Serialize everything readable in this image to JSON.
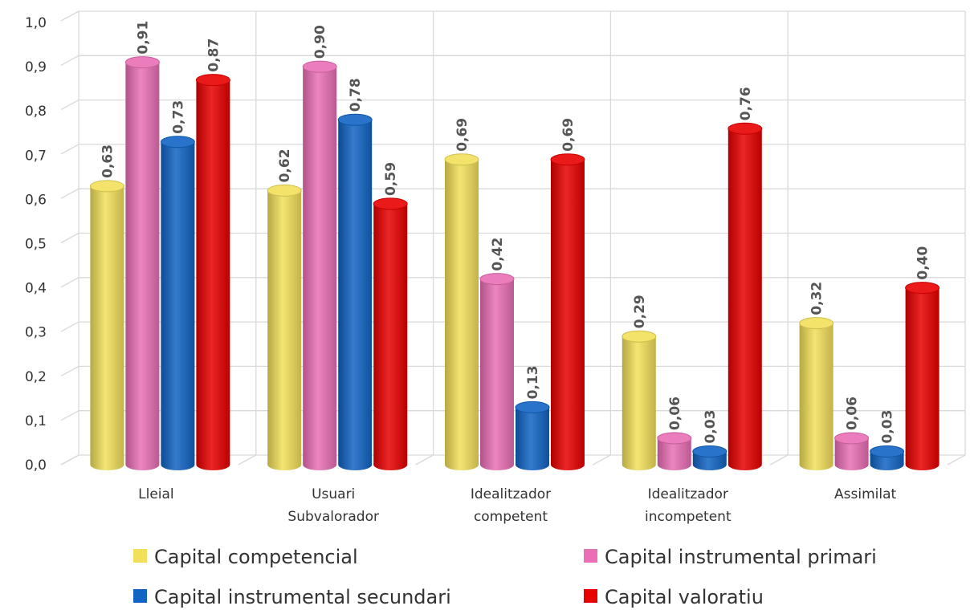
{
  "chart_data": {
    "type": "bar",
    "categories": [
      [
        "Lleial"
      ],
      [
        "Usuari",
        "Subvalorador"
      ],
      [
        "Idealitzador",
        "competent"
      ],
      [
        "Idealitzador",
        "incompetent"
      ],
      [
        "Assimilat"
      ]
    ],
    "series": [
      {
        "name": "Capital competencial",
        "color": "#f2e05a",
        "values": [
          0.63,
          0.62,
          0.69,
          0.29,
          0.32
        ],
        "labels": [
          "0,63",
          "0,62",
          "0,69",
          "0,29",
          "0,32"
        ]
      },
      {
        "name": "Capital instrumental primari",
        "color": "#ea6fb6",
        "values": [
          0.91,
          0.9,
          0.42,
          0.06,
          0.06
        ],
        "labels": [
          "0,91",
          "0,90",
          "0,42",
          "0,06",
          "0,06"
        ]
      },
      {
        "name": "Capital instrumental secundari",
        "color": "#1164c4",
        "values": [
          0.73,
          0.78,
          0.13,
          0.03,
          0.03
        ],
        "labels": [
          "0,73",
          "0,78",
          "0,13",
          "0,03",
          "0,03"
        ]
      },
      {
        "name": "Capital valoratiu",
        "color": "#e80000",
        "values": [
          0.87,
          0.59,
          0.69,
          0.76,
          0.4
        ],
        "labels": [
          "0,87",
          "0,59",
          "0,69",
          "0,76",
          "0,40"
        ]
      }
    ],
    "yticks": [
      "0,0",
      "0,1",
      "0,2",
      "0,3",
      "0,4",
      "0,5",
      "0,6",
      "0,7",
      "0,8",
      "0,9",
      "1,0"
    ],
    "ylim": [
      0,
      1.0
    ],
    "xlabel": "",
    "ylabel": "",
    "title": "",
    "grid": true,
    "legend_position": "bottom",
    "style": "3d-cylinder"
  }
}
